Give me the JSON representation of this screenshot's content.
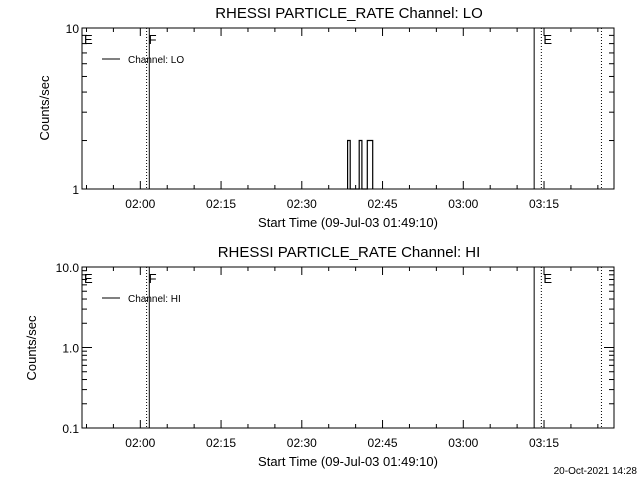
{
  "footer": {
    "timestamp": "20-Oct-2021 14:28"
  },
  "chart_data": [
    {
      "type": "line",
      "title": "RHESSI PARTICLE_RATE Channel: LO",
      "xlabel": "Start Time (09-Jul-03 01:49:10)",
      "ylabel": "Counts/sec",
      "yscale": "log",
      "ylim": [
        1,
        10
      ],
      "xlim": [
        "01:49:10",
        "03:28:00"
      ],
      "x_ticks": [
        "02:00",
        "02:15",
        "02:30",
        "02:45",
        "03:00",
        "03:15"
      ],
      "y_ticks": [
        "1",
        "10"
      ],
      "legend": {
        "position": "top-left",
        "entries": [
          "Channel: LO"
        ]
      },
      "markers": [
        {
          "label": "E",
          "time": "01:49:10",
          "style": "solid"
        },
        {
          "label": "F",
          "time": "02:01:10",
          "style": "dotted"
        },
        {
          "label": "",
          "time": "02:01:40",
          "style": "solid"
        },
        {
          "label": "",
          "time": "03:13:10",
          "style": "solid"
        },
        {
          "label": "E",
          "time": "03:14:30",
          "style": "dotted"
        },
        {
          "label": "",
          "time": "03:25:40",
          "style": "dotted"
        }
      ],
      "series": [
        {
          "name": "Channel: LO",
          "points": [
            [
              "02:38:30",
              1
            ],
            [
              "02:38:30",
              2
            ],
            [
              "02:39:00",
              2
            ],
            [
              "02:39:00",
              1
            ],
            [
              "02:40:40",
              1
            ],
            [
              "02:40:40",
              2
            ],
            [
              "02:41:10",
              2
            ],
            [
              "02:41:10",
              1
            ],
            [
              "02:42:10",
              1
            ],
            [
              "02:42:10",
              2
            ],
            [
              "02:43:10",
              2
            ],
            [
              "02:43:10",
              1
            ]
          ]
        }
      ]
    },
    {
      "type": "line",
      "title": "RHESSI PARTICLE_RATE Channel: HI",
      "xlabel": "Start Time (09-Jul-03 01:49:10)",
      "ylabel": "Counts/sec",
      "yscale": "log",
      "ylim": [
        0.1,
        10
      ],
      "xlim": [
        "01:49:10",
        "03:28:00"
      ],
      "x_ticks": [
        "02:00",
        "02:15",
        "02:30",
        "02:45",
        "03:00",
        "03:15"
      ],
      "y_ticks": [
        "0.1",
        "1.0",
        "10.0"
      ],
      "legend": {
        "position": "top-left",
        "entries": [
          "Channel: HI"
        ]
      },
      "markers": [
        {
          "label": "E",
          "time": "01:49:10",
          "style": "solid"
        },
        {
          "label": "F",
          "time": "02:01:10",
          "style": "dotted"
        },
        {
          "label": "",
          "time": "02:01:40",
          "style": "solid"
        },
        {
          "label": "",
          "time": "03:13:10",
          "style": "solid"
        },
        {
          "label": "E",
          "time": "03:14:30",
          "style": "dotted"
        },
        {
          "label": "",
          "time": "03:25:40",
          "style": "dotted"
        }
      ],
      "series": [
        {
          "name": "Channel: HI",
          "points": []
        }
      ]
    }
  ]
}
